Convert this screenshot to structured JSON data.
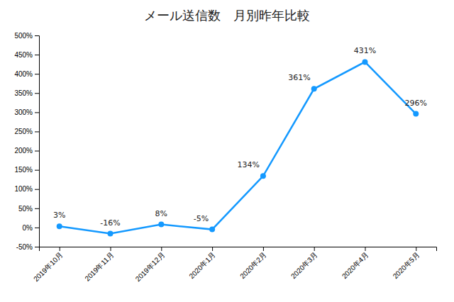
{
  "chart_data": {
    "type": "line",
    "title": "メール送信数　月別昨年比較",
    "categories": [
      "2019年10月",
      "2019年11月",
      "2019年12月",
      "2020年1月",
      "2020年2月",
      "2020年3月",
      "2020年4月",
      "2020年5月"
    ],
    "values": [
      3,
      -16,
      8,
      -5,
      134,
      361,
      431,
      296
    ],
    "value_labels": [
      "3%",
      "-16%",
      "8%",
      "-5%",
      "134%",
      "361%",
      "431%",
      "296%"
    ],
    "color": "#1499ff",
    "marker": "circle",
    "ylim": [
      -50,
      500
    ],
    "yticks": [
      {
        "value": -50,
        "label": "-50%"
      },
      {
        "value": 0,
        "label": "0%"
      },
      {
        "value": 50,
        "label": "50%"
      },
      {
        "value": 100,
        "label": "100%"
      },
      {
        "value": 150,
        "label": "150%"
      },
      {
        "value": 200,
        "label": "200%"
      },
      {
        "value": 250,
        "label": "250%"
      },
      {
        "value": 300,
        "label": "300%"
      },
      {
        "value": 350,
        "label": "350%"
      },
      {
        "value": 400,
        "label": "400%"
      },
      {
        "value": 450,
        "label": "450%"
      },
      {
        "value": 500,
        "label": "500%"
      }
    ],
    "grid": false,
    "data_labels": true
  }
}
